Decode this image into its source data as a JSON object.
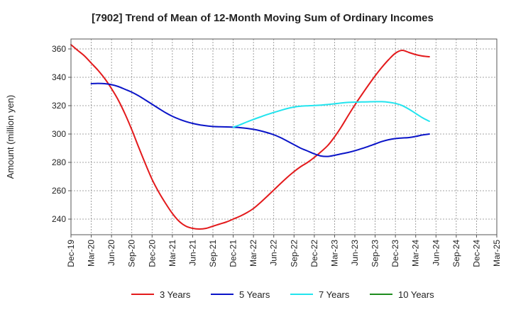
{
  "chart_data": {
    "type": "line",
    "title": "[7902]  Trend of Mean of 12-Month Moving Sum of Ordinary Incomes",
    "xlabel": "",
    "ylabel": "Amount (million yen)",
    "categories": [
      "Dec-19",
      "Mar-20",
      "Jun-20",
      "Sep-20",
      "Dec-20",
      "Mar-21",
      "Jun-21",
      "Sep-21",
      "Dec-21",
      "Mar-22",
      "Jun-22",
      "Sep-22",
      "Dec-22",
      "Mar-23",
      "Jun-23",
      "Sep-23",
      "Dec-23",
      "Mar-24",
      "Jun-24",
      "Sep-24",
      "Dec-24",
      "Mar-25"
    ],
    "ylim": [
      229,
      367
    ],
    "yticks": [
      240,
      260,
      280,
      300,
      320,
      340,
      360
    ],
    "grid": true,
    "legend_position": "bottom",
    "series": [
      {
        "name": "3 Years",
        "color": "#e31a1c",
        "points": [
          [
            0,
            363
          ],
          [
            0.33,
            359
          ],
          [
            0.67,
            355
          ],
          [
            1,
            350
          ],
          [
            1.33,
            345
          ],
          [
            1.67,
            339
          ],
          [
            2,
            332
          ],
          [
            2.33,
            324
          ],
          [
            2.67,
            314
          ],
          [
            3,
            303
          ],
          [
            3.33,
            291
          ],
          [
            3.67,
            279
          ],
          [
            4,
            268
          ],
          [
            4.33,
            259
          ],
          [
            4.67,
            251
          ],
          [
            5,
            244
          ],
          [
            5.33,
            238.5
          ],
          [
            5.67,
            235
          ],
          [
            6,
            233.5
          ],
          [
            6.33,
            233
          ],
          [
            6.67,
            233.5
          ],
          [
            7,
            235
          ],
          [
            7.33,
            236.5
          ],
          [
            7.67,
            238
          ],
          [
            8,
            240
          ],
          [
            8.33,
            242
          ],
          [
            8.67,
            244.5
          ],
          [
            9,
            247.5
          ],
          [
            9.33,
            251.5
          ],
          [
            9.67,
            256
          ],
          [
            10,
            260.5
          ],
          [
            10.33,
            265
          ],
          [
            10.67,
            269.5
          ],
          [
            11,
            273.5
          ],
          [
            11.33,
            277
          ],
          [
            11.67,
            280
          ],
          [
            12,
            283.5
          ],
          [
            12.33,
            287.5
          ],
          [
            12.67,
            292
          ],
          [
            13,
            298
          ],
          [
            13.33,
            305
          ],
          [
            13.67,
            313
          ],
          [
            14,
            320.5
          ],
          [
            14.33,
            327.5
          ],
          [
            14.67,
            334.5
          ],
          [
            15,
            341
          ],
          [
            15.33,
            347
          ],
          [
            15.67,
            352.5
          ],
          [
            16,
            357
          ],
          [
            16.33,
            359
          ],
          [
            16.67,
            357.5
          ],
          [
            17,
            356
          ],
          [
            17.33,
            355
          ],
          [
            17.67,
            354.5
          ]
        ]
      },
      {
        "name": "5 Years",
        "color": "#0a14c8",
        "points": [
          [
            1,
            335.5
          ],
          [
            1.33,
            335.7
          ],
          [
            1.67,
            335.5
          ],
          [
            2,
            334.8
          ],
          [
            2.33,
            333.5
          ],
          [
            2.67,
            331.5
          ],
          [
            3,
            329.5
          ],
          [
            3.33,
            327
          ],
          [
            3.67,
            324
          ],
          [
            4,
            321
          ],
          [
            4.33,
            318
          ],
          [
            4.67,
            315
          ],
          [
            5,
            312.5
          ],
          [
            5.33,
            310.5
          ],
          [
            5.67,
            308.8
          ],
          [
            6,
            307.5
          ],
          [
            6.33,
            306.5
          ],
          [
            6.67,
            305.8
          ],
          [
            7,
            305.3
          ],
          [
            7.33,
            305.1
          ],
          [
            7.67,
            305
          ],
          [
            8,
            304.8
          ],
          [
            8.33,
            304.5
          ],
          [
            8.67,
            304
          ],
          [
            9,
            303.3
          ],
          [
            9.33,
            302.3
          ],
          [
            9.67,
            301
          ],
          [
            10,
            299.5
          ],
          [
            10.33,
            297.5
          ],
          [
            10.67,
            295
          ],
          [
            11,
            292.5
          ],
          [
            11.33,
            290
          ],
          [
            11.67,
            288
          ],
          [
            12,
            286
          ],
          [
            12.33,
            284.5
          ],
          [
            12.67,
            284.2
          ],
          [
            13,
            285
          ],
          [
            13.33,
            286
          ],
          [
            13.67,
            287
          ],
          [
            14,
            288.2
          ],
          [
            14.33,
            289.7
          ],
          [
            14.67,
            291.3
          ],
          [
            15,
            293
          ],
          [
            15.33,
            294.7
          ],
          [
            15.67,
            296
          ],
          [
            16,
            296.8
          ],
          [
            16.33,
            297.2
          ],
          [
            16.67,
            297.5
          ],
          [
            17,
            298.3
          ],
          [
            17.33,
            299.3
          ],
          [
            17.67,
            300
          ]
        ]
      },
      {
        "name": "7 Years",
        "color": "#22e4ee",
        "points": [
          [
            8,
            304.8
          ],
          [
            8.33,
            306.5
          ],
          [
            8.67,
            308.5
          ],
          [
            9,
            310.3
          ],
          [
            9.33,
            312
          ],
          [
            9.67,
            313.7
          ],
          [
            10,
            315.2
          ],
          [
            10.33,
            316.6
          ],
          [
            10.67,
            318
          ],
          [
            11,
            319
          ],
          [
            11.33,
            319.6
          ],
          [
            11.67,
            319.9
          ],
          [
            12,
            320.1
          ],
          [
            12.33,
            320.4
          ],
          [
            12.67,
            320.8
          ],
          [
            13,
            321.3
          ],
          [
            13.33,
            321.9
          ],
          [
            13.67,
            322.3
          ],
          [
            14,
            322.5
          ],
          [
            14.33,
            322.6
          ],
          [
            14.67,
            322.7
          ],
          [
            15,
            322.8
          ],
          [
            15.33,
            322.8
          ],
          [
            15.67,
            322.4
          ],
          [
            16,
            321.6
          ],
          [
            16.33,
            320.1
          ],
          [
            16.67,
            317.5
          ],
          [
            17,
            314.5
          ],
          [
            17.33,
            311.5
          ],
          [
            17.67,
            309
          ]
        ]
      },
      {
        "name": "10 Years",
        "color": "#1e8c1e",
        "points": []
      }
    ]
  }
}
